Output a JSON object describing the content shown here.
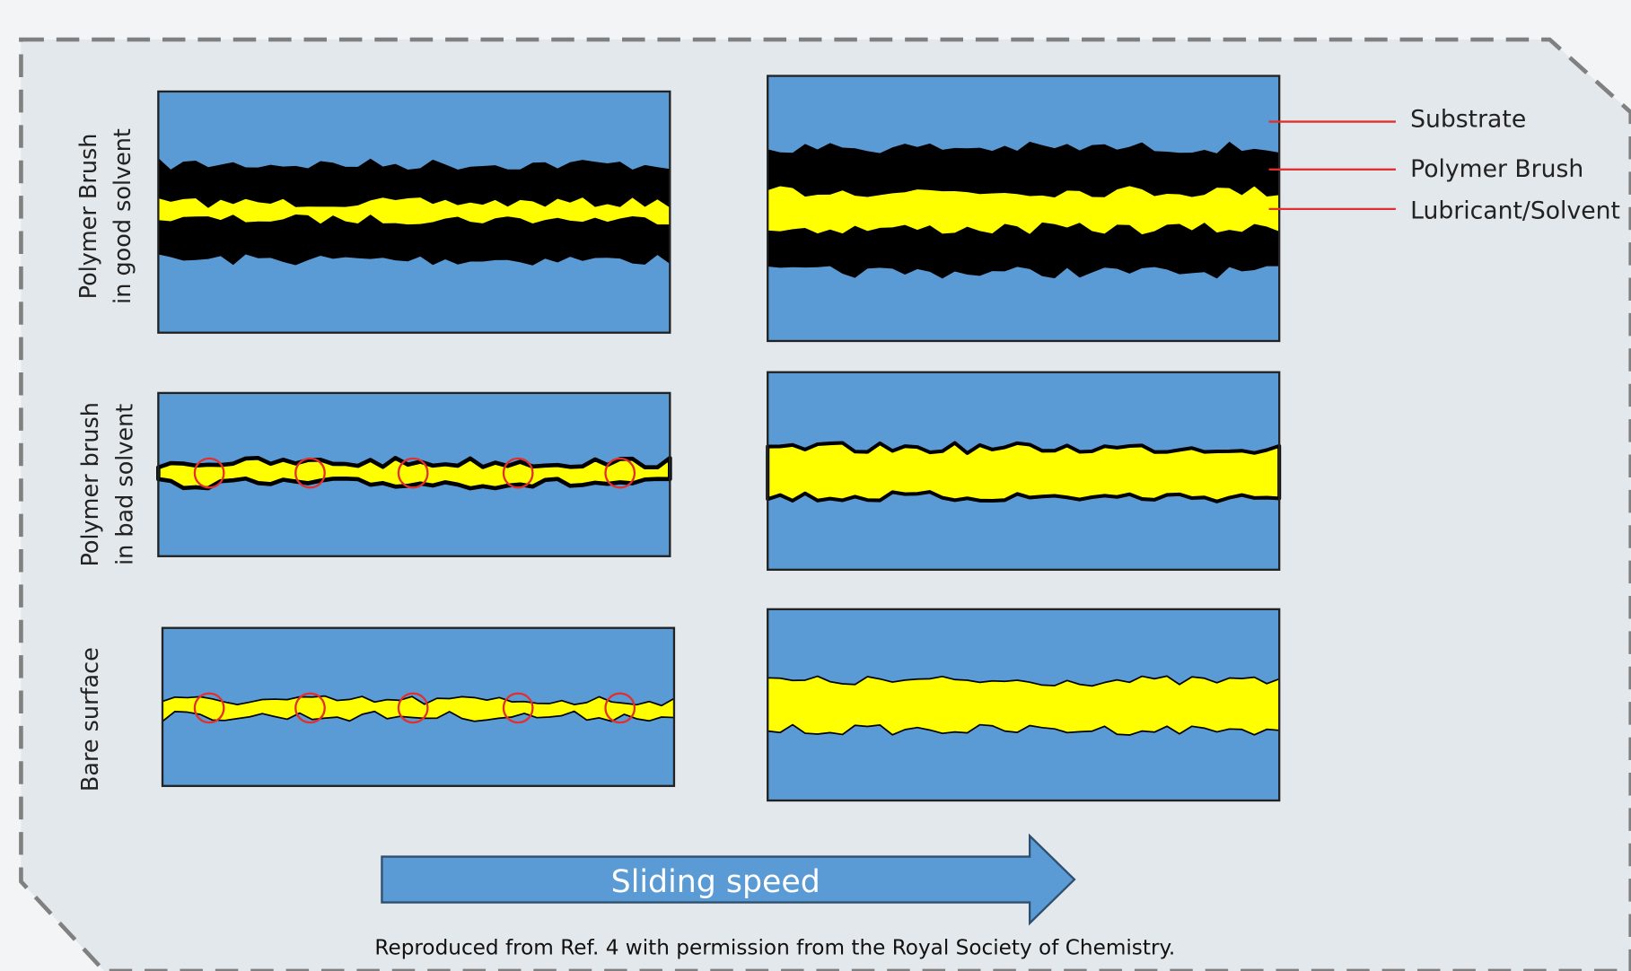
{
  "rows": [
    {
      "label": [
        "Polymer Brush",
        "in good solvent"
      ]
    },
    {
      "label": [
        "Polymer brush",
        "in bad solvent"
      ]
    },
    {
      "label": [
        "Bare surface"
      ]
    }
  ],
  "legend": [
    "Substrate",
    "Polymer Brush",
    "Lubricant/Solvent"
  ],
  "arrow": "Sliding speed",
  "caption": "Reproduced from Ref. 4 with permission from the Royal Society of Chemistry."
}
